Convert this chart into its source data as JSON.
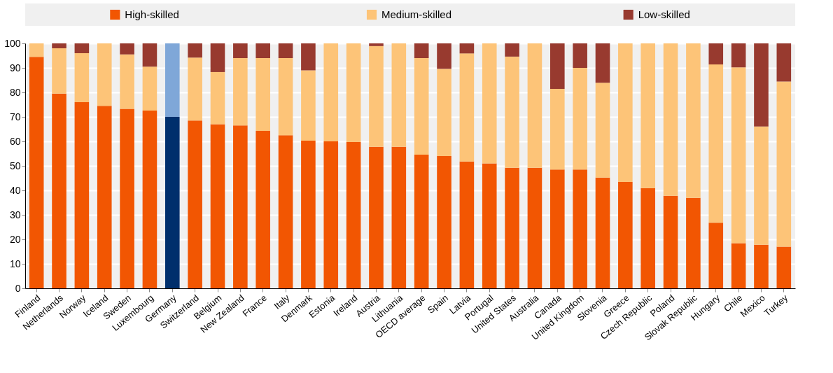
{
  "chart_data": {
    "type": "bar",
    "stacked": true,
    "categories": [
      "Finland",
      "Netherlands",
      "Norway",
      "Iceland",
      "Sweden",
      "Luxembourg",
      "Germany",
      "Switzerland",
      "Belgium",
      "New Zealand",
      "France",
      "Italy",
      "Denmark",
      "Estonia",
      "Ireland",
      "Austria",
      "Lithuania",
      "OECD average",
      "Spain",
      "Latvia",
      "Portugal",
      "United States",
      "Australia",
      "Canada",
      "United Kingdom",
      "Slovenia",
      "Greece",
      "Czech Republic",
      "Poland",
      "Slovak Republic",
      "Hungary",
      "Chile",
      "Mexico",
      "Turkey"
    ],
    "series": [
      {
        "name": "High-skilled",
        "color": "#f25602",
        "colors": [
          "#f25602",
          "#f25602",
          "#f25602",
          "#f25602",
          "#f25602",
          "#f25602",
          "#002f6c",
          "#f25602",
          "#f25602",
          "#f25602",
          "#f25602",
          "#f25602",
          "#f25602",
          "#f25602",
          "#f25602",
          "#f25602",
          "#f25602",
          "#f25602",
          "#f25602",
          "#f25602",
          "#f25602",
          "#f25602",
          "#f25602",
          "#f25602",
          "#f25602",
          "#f25602",
          "#f25602",
          "#f25602",
          "#f25602",
          "#f25602",
          "#f25602",
          "#f25602",
          "#f25602",
          "#f25602"
        ],
        "values": [
          94.5,
          79.5,
          76,
          74.5,
          73.3,
          72.6,
          70,
          68.5,
          67,
          66.5,
          64.3,
          62.5,
          60.3,
          60,
          59.7,
          57.8,
          57.8,
          54.6,
          54,
          51.8,
          51,
          49.2,
          49.2,
          48.5,
          48.5,
          45.2,
          43.4,
          40.9,
          37.8,
          36.9,
          26.8,
          18.4,
          17.8,
          17
        ]
      },
      {
        "name": "Medium-skilled",
        "color": "#fdc478",
        "colors": [
          "#fdc478",
          "#fdc478",
          "#fdc478",
          "#fdc478",
          "#fdc478",
          "#fdc478",
          "#7fa7d8",
          "#fdc478",
          "#fdc478",
          "#fdc478",
          "#fdc478",
          "#fdc478",
          "#fdc478",
          "#fdc478",
          "#fdc478",
          "#fdc478",
          "#fdc478",
          "#fdc478",
          "#fdc478",
          "#fdc478",
          "#fdc478",
          "#fdc478",
          "#fdc478",
          "#fdc478",
          "#fdc478",
          "#fdc478",
          "#fdc478",
          "#fdc478",
          "#fdc478",
          "#fdc478",
          "#fdc478",
          "#fdc478",
          "#fdc478",
          "#fdc478"
        ],
        "values": [
          5.5,
          18.5,
          20,
          25.5,
          22.2,
          17.9,
          30,
          25.7,
          21.3,
          27.5,
          29.7,
          31.5,
          28.7,
          40,
          40.3,
          41.1,
          42.2,
          39.4,
          35.6,
          44.1,
          49,
          45.4,
          50.8,
          32.9,
          41.5,
          38.7,
          56.6,
          59.1,
          62.2,
          63.1,
          64.6,
          71.8,
          48.3,
          67.4
        ]
      },
      {
        "name": "Low-skilled",
        "color": "#983a2f",
        "values": [
          0,
          2,
          4,
          0,
          4.5,
          9.5,
          0,
          5.8,
          11.7,
          6,
          6,
          6,
          11,
          0,
          0,
          1.1,
          0,
          6,
          10.4,
          4.1,
          0,
          5.4,
          0,
          18.6,
          10,
          16.1,
          0,
          0,
          0,
          0,
          8.6,
          9.8,
          33.9,
          15.6
        ]
      }
    ],
    "ylim": [
      0,
      100
    ],
    "yticks": [
      0,
      10,
      20,
      30,
      40,
      50,
      60,
      70,
      80,
      90,
      100
    ],
    "grid": "y",
    "legend": "top"
  }
}
